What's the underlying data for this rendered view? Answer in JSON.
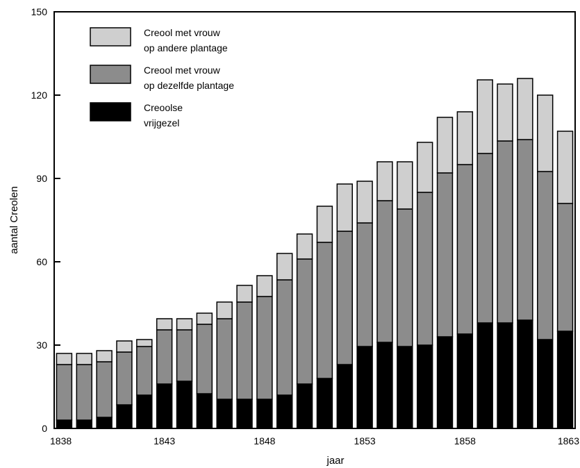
{
  "chart_data": {
    "type": "bar",
    "stacked": true,
    "xlabel": "jaar",
    "ylabel": "aantal Creolen",
    "ylim": [
      0,
      150
    ],
    "yticks": [
      0,
      30,
      60,
      90,
      120,
      150
    ],
    "xtick_labels": [
      "1838",
      "1843",
      "1848",
      "1853",
      "1858",
      "1863"
    ],
    "categories": [
      "1838",
      "1839",
      "1840",
      "1841",
      "1842",
      "1843",
      "1844",
      "1845",
      "1846",
      "1847",
      "1848",
      "1849",
      "1850",
      "1851",
      "1852",
      "1853",
      "1854",
      "1855",
      "1856",
      "1857",
      "1858",
      "1859",
      "1860",
      "1861",
      "1862",
      "1863"
    ],
    "series": [
      {
        "name": "Creoolse vrijgezel",
        "label_lines": [
          "Creoolse",
          "vrijgezel"
        ],
        "color": "#000000",
        "values": [
          3,
          3,
          4,
          8.5,
          12,
          16,
          17,
          12.5,
          10.5,
          10.5,
          10.5,
          12,
          16,
          18,
          23,
          29.5,
          31,
          29.5,
          30,
          33,
          34,
          38,
          38,
          39,
          32,
          35
        ]
      },
      {
        "name": "Creool met vrouw op dezelfde plantage",
        "label_lines": [
          "Creool met vrouw",
          "op dezelfde plantage"
        ],
        "color": "#8c8c8c",
        "values": [
          20,
          20,
          20,
          19,
          17.5,
          19.5,
          18.5,
          25,
          29,
          35,
          37,
          41.5,
          45,
          49,
          48,
          44.5,
          51,
          49.5,
          55,
          59,
          61,
          61,
          65.5,
          65,
          60.5,
          46
        ]
      },
      {
        "name": "Creool met vrouw op andere plantage",
        "label_lines": [
          "Creool met vrouw",
          "op andere plantage"
        ],
        "color": "#cfcfcf",
        "values": [
          4,
          4,
          4,
          4,
          2.5,
          4,
          4,
          4,
          6,
          6,
          7.5,
          9.5,
          9,
          13,
          17,
          15,
          14,
          17,
          18,
          20,
          19,
          26.5,
          20.5,
          22,
          27.5,
          26
        ]
      }
    ]
  }
}
